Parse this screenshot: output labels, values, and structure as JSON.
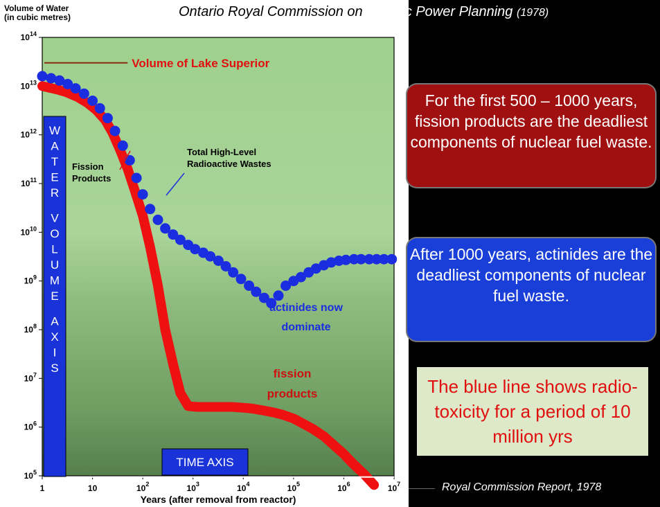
{
  "header": {
    "title_main": "Ontario Royal Commission on ",
    "title_dark": "Electric Power Planning",
    "title_year": "(1978)"
  },
  "ylabel_line1": "Volume of Water",
  "ylabel_line2": "(in cubic metres)",
  "xlabel": "Years (after removal from reactor)",
  "chart_data": {
    "type": "line",
    "xscale": "log",
    "yscale": "log",
    "xlim": [
      1,
      10000000
    ],
    "ylim": [
      100000,
      100000000000000
    ],
    "x_ticks": [
      {
        "v": 1,
        "base": "1",
        "exp": ""
      },
      {
        "v": 10,
        "base": "10",
        "exp": ""
      },
      {
        "v": 100,
        "base": "10",
        "exp": "2"
      },
      {
        "v": 1000,
        "base": "10",
        "exp": "3"
      },
      {
        "v": 10000,
        "base": "10",
        "exp": "4"
      },
      {
        "v": 100000,
        "base": "10",
        "exp": "5"
      },
      {
        "v": 1000000,
        "base": "10",
        "exp": "6"
      },
      {
        "v": 10000000,
        "base": "10",
        "exp": "7"
      }
    ],
    "y_ticks": [
      {
        "v": 100000,
        "base": "10",
        "exp": "5"
      },
      {
        "v": 1000000,
        "base": "10",
        "exp": "6"
      },
      {
        "v": 10000000,
        "base": "10",
        "exp": "7"
      },
      {
        "v": 100000000,
        "base": "10",
        "exp": "8"
      },
      {
        "v": 1000000000,
        "base": "10",
        "exp": "9"
      },
      {
        "v": 10000000000,
        "base": "10",
        "exp": "10"
      },
      {
        "v": 100000000000,
        "base": "10",
        "exp": "11"
      },
      {
        "v": 1000000000000,
        "base": "10",
        "exp": "12"
      },
      {
        "v": 10000000000000,
        "base": "10",
        "exp": "13"
      },
      {
        "v": 100000000000000,
        "base": "10",
        "exp": "14"
      }
    ],
    "series": [
      {
        "name": "Total High-Level Radioactive Wastes",
        "color": "#1a2ee0",
        "style": "dots",
        "x": [
          1,
          1.5,
          2.2,
          3.2,
          4.6,
          6.8,
          10,
          14,
          20,
          28,
          40,
          55,
          75,
          100,
          140,
          200,
          280,
          400,
          560,
          800,
          1100,
          1600,
          2200,
          3200,
          4500,
          6300,
          9000,
          13000,
          18000,
          26000,
          36000,
          50000,
          70000,
          100000,
          140000,
          200000,
          280000,
          400000,
          560000,
          800000,
          1100000,
          1600000,
          2200000,
          3200000,
          4500000,
          6300000,
          9000000
        ],
        "y": [
          16000000000000.0,
          14500000000000.0,
          13000000000000.0,
          11000000000000.0,
          9000000000000.0,
          7000000000000.0,
          5000000000000.0,
          3500000000000.0,
          2200000000000.0,
          1200000000000.0,
          600000000000.0,
          300000000000.0,
          130000000000.0,
          60000000000.0,
          30000000000.0,
          18000000000.0,
          12000000000.0,
          9000000000.0,
          7000000000.0,
          5500000000.0,
          4500000000.0,
          3800000000.0,
          3200000000.0,
          2600000000.0,
          2000000000.0,
          1500000000.0,
          1100000000.0,
          800000000.0,
          600000000.0,
          450000000.0,
          350000000.0,
          500000000.0,
          800000000.0,
          1000000000.0,
          1200000000.0,
          1500000000.0,
          1800000000.0,
          2100000000.0,
          2400000000.0,
          2600000000.0,
          2700000000.0,
          2800000000.0,
          2800000000.0,
          2800000000.0,
          2800000000.0,
          2800000000.0,
          2800000000.0
        ]
      },
      {
        "name": "Fission Products",
        "color": "#ee1111",
        "style": "thick",
        "x": [
          1,
          2,
          3,
          5,
          8,
          12,
          18,
          25,
          35,
          50,
          70,
          100,
          140,
          200,
          280,
          400,
          560,
          800,
          1200,
          1800,
          2500,
          4000,
          6000,
          10000,
          15000,
          25000,
          40000,
          60000,
          100000,
          150000,
          250000,
          400000,
          600000,
          1000000,
          1500000,
          2500000,
          4000000
        ],
        "y": [
          10000000000000.0,
          8500000000000.0,
          7500000000000.0,
          6000000000000.0,
          4500000000000.0,
          3200000000000.0,
          2000000000000.0,
          1100000000000.0,
          500000000000.0,
          200000000000.0,
          70000000000.0,
          22000000000.0,
          5000000000.0,
          800000000.0,
          100000000.0,
          20000000.0,
          5000000.0,
          2700000.0,
          2600000.0,
          2600000.0,
          2600000.0,
          2600000.0,
          2600000.0,
          2500000.0,
          2400000.0,
          2200000.0,
          2000000.0,
          1800000.0,
          1500000.0,
          1200000.0,
          900000.0,
          650000.0,
          450000.0,
          280000.0,
          180000.0,
          110000.0,
          65000.0
        ]
      }
    ],
    "reference": {
      "label": "Volume of Lake Superior",
      "y": 30000000000000,
      "x_range": [
        1.1,
        50
      ]
    },
    "annotations": {
      "total_label": "Total High-Level\nRadioactive Wastes",
      "fission_label": "Fission\nProducts",
      "actinides_label": "actinides now\ndominate",
      "fission2_label": "fission\nproducts"
    },
    "vertical_box_text": "WATER VOLUME AXIS",
    "horizontal_box_text": "TIME AXIS"
  },
  "callouts": {
    "red": "For the first 500 – 1000 years, fission products are the deadliest components of nuclear fuel waste.",
    "blue": "After 1000 years, actinides are the deadliest components of nuclear fuel waste.",
    "green": "The blue line shows radio-toxicity for a period of 10 million yrs"
  },
  "credit": "Royal Commission Report, 1978"
}
